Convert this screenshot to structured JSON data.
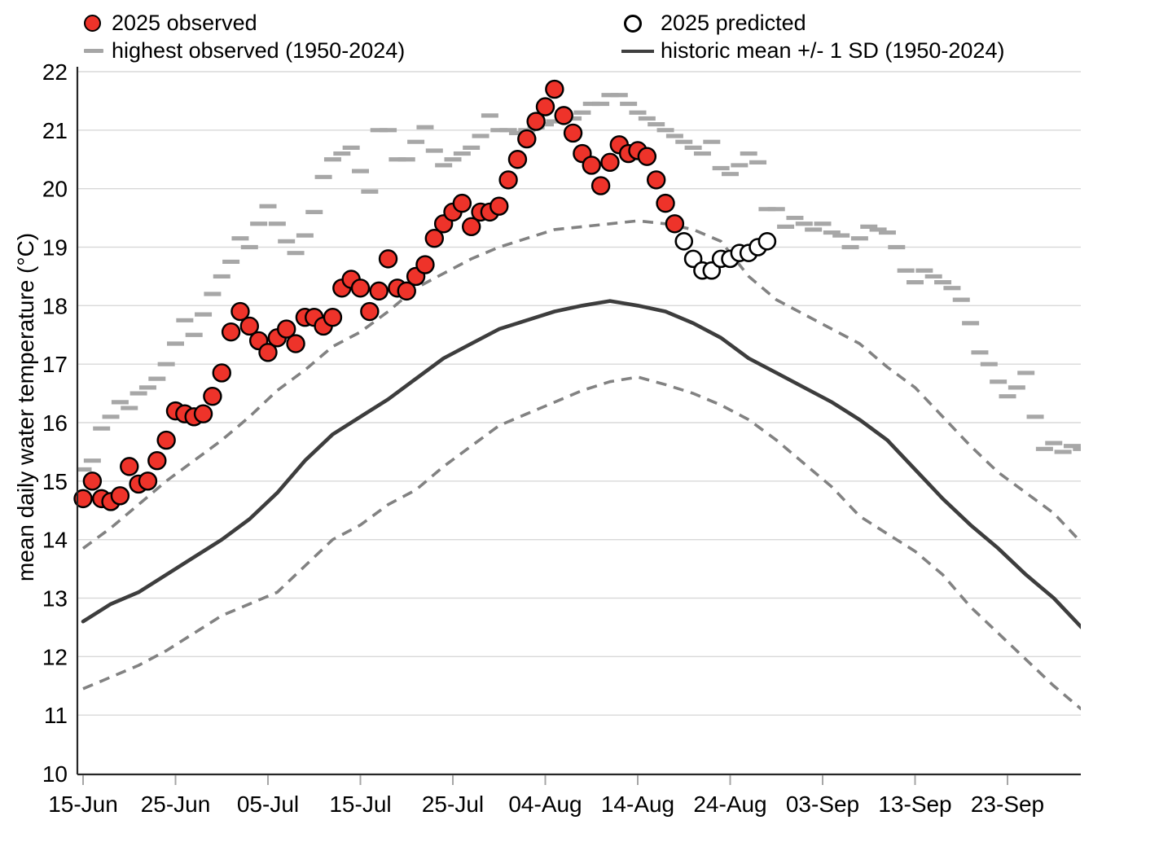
{
  "legend": {
    "observed": "2025 observed",
    "highest": "highest observed (1950-2024)",
    "predicted": "2025 predicted",
    "mean_sd": "historic mean +/- 1 SD (1950-2024)"
  },
  "chart_data": {
    "type": "scatter",
    "title": "",
    "xlabel": "",
    "ylabel": "mean daily water temperature (°C)",
    "ylim": [
      10,
      22
    ],
    "y_ticks": [
      10,
      11,
      12,
      13,
      14,
      15,
      16,
      17,
      18,
      19,
      20,
      21,
      22
    ],
    "grid": "horizontal",
    "x_axis_days_range": [
      -0.6,
      108
    ],
    "x_tick_days": [
      0,
      10,
      20,
      30,
      40,
      50,
      60,
      70,
      80,
      90,
      100
    ],
    "x_tick_labels": [
      "15-Jun",
      "25-Jun",
      "05-Jul",
      "15-Jul",
      "25-Jul",
      "04-Aug",
      "14-Aug",
      "24-Aug",
      "03-Sep",
      "13-Sep",
      "23-Sep"
    ],
    "colors": {
      "observed_fill": "#ee332a",
      "marker_stroke": "#000000",
      "predicted_fill": "#ffffff",
      "highest_dash": "#a7a7a7",
      "mean_line": "#3d3d3d",
      "sd_line": "#828282",
      "gridline": "#d9d9d9",
      "axis": "#262626",
      "tick": "#a6a6a6"
    },
    "series": [
      {
        "name": "2025 observed",
        "kind": "scatter-filled-circle",
        "start_day": 0,
        "start_date": "15-Jun",
        "end_date": "18-Aug",
        "day_step": 1,
        "values": [
          14.7,
          15.0,
          14.7,
          14.65,
          14.75,
          15.25,
          14.95,
          15.0,
          15.35,
          15.7,
          16.2,
          16.15,
          16.1,
          16.15,
          16.45,
          16.85,
          17.55,
          17.9,
          17.65,
          17.4,
          17.2,
          17.45,
          17.6,
          17.35,
          17.8,
          17.8,
          17.65,
          17.8,
          18.3,
          18.45,
          18.3,
          17.9,
          18.25,
          18.8,
          18.3,
          18.25,
          18.5,
          18.7,
          19.15,
          19.4,
          19.6,
          19.75,
          19.35,
          19.6,
          19.6,
          19.7,
          20.15,
          20.5,
          20.85,
          21.15,
          21.4,
          21.7,
          21.25,
          20.95,
          20.6,
          20.4,
          20.05,
          20.45,
          20.75,
          20.6,
          20.65,
          20.55,
          20.15,
          19.75,
          19.4
        ]
      },
      {
        "name": "2025 predicted",
        "kind": "scatter-open-circle",
        "start_day": 65,
        "start_date": "19-Aug",
        "end_date": "28-Aug",
        "day_step": 1,
        "values": [
          19.1,
          18.8,
          18.6,
          18.6,
          18.8,
          18.8,
          18.9,
          18.9,
          19.0,
          19.1
        ]
      },
      {
        "name": "highest observed (1950-2024)",
        "kind": "dash-markers",
        "start_day": 0,
        "start_date": "15-Jun",
        "end_date": "01-Oct",
        "day_step": 1,
        "values": [
          15.2,
          15.35,
          15.9,
          16.1,
          16.35,
          16.25,
          16.5,
          16.6,
          16.75,
          17.0,
          17.35,
          17.75,
          17.5,
          17.85,
          18.2,
          18.5,
          18.75,
          19.15,
          19.0,
          19.4,
          19.7,
          19.4,
          19.1,
          18.9,
          19.2,
          19.6,
          20.2,
          20.5,
          20.6,
          20.7,
          20.3,
          19.95,
          21.0,
          21.0,
          20.5,
          20.5,
          20.8,
          21.05,
          20.65,
          20.4,
          20.5,
          20.6,
          20.7,
          20.9,
          21.25,
          21.0,
          21.0,
          20.95,
          21.0,
          21.05,
          21.1,
          21.15,
          21.2,
          21.2,
          21.3,
          21.45,
          21.45,
          21.6,
          21.6,
          21.45,
          21.3,
          21.2,
          21.1,
          21.0,
          20.9,
          20.8,
          20.7,
          20.6,
          20.8,
          20.35,
          20.25,
          20.4,
          20.6,
          20.45,
          19.65,
          19.65,
          19.35,
          19.5,
          19.4,
          19.3,
          19.4,
          19.25,
          19.2,
          19.0,
          19.15,
          19.35,
          19.3,
          19.25,
          19.0,
          18.6,
          18.4,
          18.6,
          18.5,
          18.4,
          18.3,
          18.1,
          17.7,
          17.2,
          17.0,
          16.7,
          16.45,
          16.6,
          16.85,
          16.1,
          15.55,
          15.65,
          15.5,
          15.6,
          15.55
        ]
      },
      {
        "name": "historic mean (1950-2024)",
        "kind": "solid-line",
        "start_day": 0,
        "start_date": "15-Jun",
        "end_date": "01-Oct",
        "day_step": 3,
        "values": [
          12.6,
          12.9,
          13.1,
          13.4,
          13.7,
          14.0,
          14.35,
          14.8,
          15.35,
          15.8,
          16.1,
          16.4,
          16.75,
          17.1,
          17.35,
          17.6,
          17.75,
          17.9,
          18.0,
          18.08,
          18.0,
          17.9,
          17.7,
          17.45,
          17.1,
          16.85,
          16.6,
          16.35,
          16.05,
          15.7,
          15.2,
          14.7,
          14.25,
          13.85,
          13.4,
          13.0,
          12.5
        ]
      },
      {
        "name": "historic mean +1 SD",
        "kind": "dashed-line",
        "start_day": 0,
        "start_date": "15-Jun",
        "end_date": "01-Oct",
        "day_step": 3,
        "values": [
          13.85,
          14.2,
          14.6,
          15.0,
          15.35,
          15.7,
          16.1,
          16.55,
          16.9,
          17.3,
          17.55,
          17.9,
          18.3,
          18.55,
          18.8,
          19.0,
          19.15,
          19.3,
          19.35,
          19.4,
          19.45,
          19.4,
          19.3,
          19.1,
          18.5,
          18.1,
          17.85,
          17.6,
          17.35,
          16.95,
          16.6,
          16.1,
          15.6,
          15.15,
          14.8,
          14.45,
          13.95
        ]
      },
      {
        "name": "historic mean -1 SD",
        "kind": "dashed-line",
        "start_day": 0,
        "start_date": "15-Jun",
        "end_date": "01-Oct",
        "day_step": 3,
        "values": [
          11.45,
          11.65,
          11.85,
          12.1,
          12.4,
          12.7,
          12.9,
          13.1,
          13.55,
          14.0,
          14.25,
          14.6,
          14.85,
          15.25,
          15.6,
          15.95,
          16.15,
          16.35,
          16.55,
          16.7,
          16.78,
          16.65,
          16.5,
          16.3,
          16.05,
          15.7,
          15.3,
          14.9,
          14.4,
          14.1,
          13.8,
          13.4,
          12.85,
          12.4,
          11.95,
          11.5,
          11.1
        ]
      }
    ]
  }
}
